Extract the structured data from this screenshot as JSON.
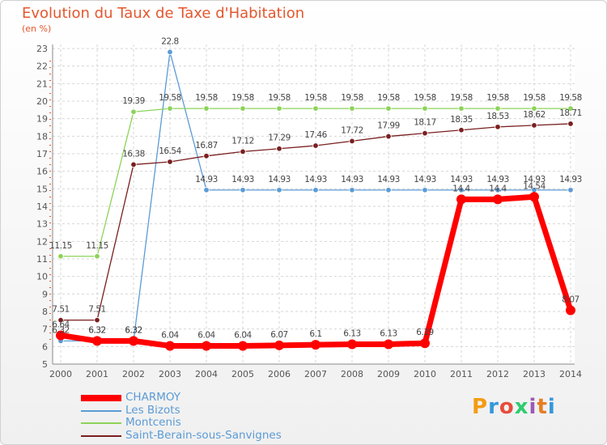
{
  "chart_data": {
    "type": "line",
    "title": "Evolution du Taux de Taxe d'Habitation",
    "subtitle": "(en %)",
    "xlabel": "",
    "ylabel": "",
    "x": [
      "2000",
      "2001",
      "2002",
      "2003",
      "2004",
      "2005",
      "2006",
      "2007",
      "2008",
      "2009",
      "2010",
      "2011",
      "2012",
      "2013",
      "2014"
    ],
    "ylim": [
      5,
      23
    ],
    "yticks": [
      5,
      6,
      7,
      8,
      9,
      10,
      11,
      12,
      13,
      14,
      15,
      16,
      17,
      18,
      19,
      20,
      21,
      22,
      23
    ],
    "grid": true,
    "legend_position": "bottom-left",
    "series": [
      {
        "name": "CHARMOY",
        "color": "#ff0000",
        "emphasis": true,
        "values": [
          6.64,
          6.32,
          6.32,
          6.04,
          6.04,
          6.04,
          6.07,
          6.1,
          6.13,
          6.13,
          6.19,
          14.4,
          14.4,
          14.54,
          8.07
        ],
        "labels": [
          "6.64",
          "6.32",
          "6.32",
          "6.04",
          "6.04",
          "6.04",
          "6.07",
          "6.1",
          "6.13",
          "6.13",
          "6.19",
          "14.4",
          "14.4",
          "14.54",
          "8.07"
        ]
      },
      {
        "name": "Les Bizots",
        "color": "#5b9bd5",
        "values": [
          6.32,
          6.32,
          6.32,
          22.8,
          14.93,
          14.93,
          14.93,
          14.93,
          14.93,
          14.93,
          14.93,
          14.93,
          14.93,
          14.93,
          14.93
        ],
        "labels": [
          "6.32",
          "6.32",
          "6.32",
          "22.8",
          "14.93",
          "14.93",
          "14.93",
          "14.93",
          "14.93",
          "14.93",
          "14.93",
          "14.93",
          "14.93",
          "14.93",
          "14.93"
        ]
      },
      {
        "name": "Montcenis",
        "color": "#8cd35a",
        "values": [
          11.15,
          11.15,
          19.39,
          19.58,
          19.58,
          19.58,
          19.58,
          19.58,
          19.58,
          19.58,
          19.58,
          19.58,
          19.58,
          19.58,
          19.58
        ],
        "labels": [
          "11.15",
          "11.15",
          "19.39",
          "19.58",
          "19.58",
          "19.58",
          "19.58",
          "19.58",
          "19.58",
          "19.58",
          "19.58",
          "19.58",
          "19.58",
          "19.58",
          "19.58"
        ]
      },
      {
        "name": "Saint-Berain-sous-Sanvignes",
        "color": "#7a1f1f",
        "values": [
          7.51,
          7.51,
          16.38,
          16.54,
          16.87,
          17.12,
          17.29,
          17.46,
          17.72,
          17.99,
          18.17,
          18.35,
          18.53,
          18.62,
          18.71
        ],
        "labels": [
          "7.51",
          "7.51",
          "16.38",
          "16.54",
          "16.87",
          "17.12",
          "17.29",
          "17.46",
          "17.72",
          "17.99",
          "18.17",
          "18.35",
          "18.53",
          "18.62",
          "18.71"
        ]
      }
    ]
  },
  "legend": {
    "items": [
      {
        "name": "CHARMOY",
        "color": "#ff0000"
      },
      {
        "name": "Les Bizots",
        "color": "#5b9bd5"
      },
      {
        "name": "Montcenis",
        "color": "#8cd35a"
      },
      {
        "name": "Saint-Berain-sous-Sanvignes",
        "color": "#7a1f1f"
      }
    ]
  },
  "logo": {
    "text": "Proxiti",
    "colors": [
      "#f39c12",
      "#3498db",
      "#e74c3c",
      "#2ecc71",
      "#9b59b6",
      "#e67e22",
      "#3498db"
    ]
  }
}
